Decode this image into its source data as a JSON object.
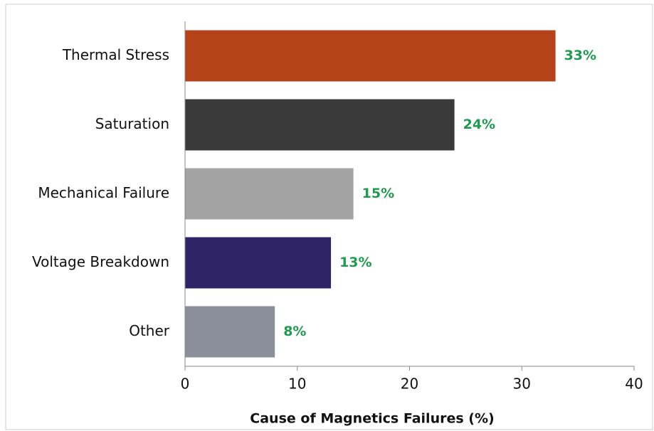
{
  "chart_data": {
    "type": "barh",
    "xlabel": "Cause of Magnetics Failures (%)",
    "categories": [
      "Thermal Stress",
      "Saturation",
      "Mechanical Failure",
      "Voltage Breakdown",
      "Other"
    ],
    "values": [
      33,
      24,
      15,
      13,
      8
    ],
    "value_labels": [
      "33%",
      "24%",
      "15%",
      "13%",
      "8%"
    ],
    "colors": [
      "#b5431a",
      "#3a3a3a",
      "#a3a3a3",
      "#2e2466",
      "#8a8f99"
    ],
    "label_color": "#1f9a4e",
    "xlim": [
      0,
      40
    ],
    "xticks": [
      0,
      10,
      20,
      30,
      40
    ],
    "grid": false
  }
}
